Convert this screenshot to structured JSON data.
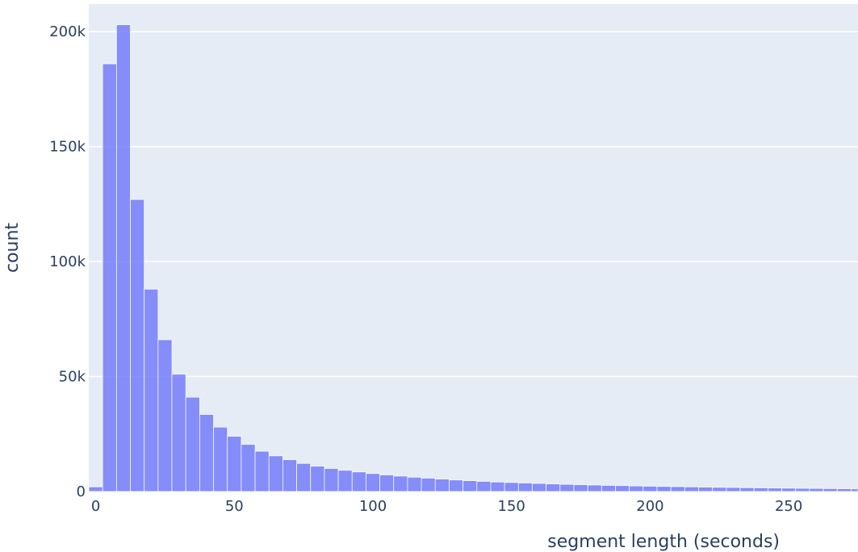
{
  "chart_data": {
    "type": "bar",
    "title": "",
    "xlabel": "segment length (seconds)",
    "ylabel": "count",
    "bin_width": 5,
    "x_start": -2.5,
    "xlim": [
      -2.5,
      275
    ],
    "ylim": [
      0,
      212000
    ],
    "grid": true,
    "legend": "none",
    "bar_color": "#636efa",
    "plot_background": "#e5ecf6",
    "x_ticks": [
      {
        "value": 0,
        "label": "0"
      },
      {
        "value": 50,
        "label": "50"
      },
      {
        "value": 100,
        "label": "100"
      },
      {
        "value": 150,
        "label": "150"
      },
      {
        "value": 200,
        "label": "200"
      },
      {
        "value": 250,
        "label": "250"
      }
    ],
    "y_ticks": [
      {
        "value": 0,
        "label": "0"
      },
      {
        "value": 50000,
        "label": "50k"
      },
      {
        "value": 100000,
        "label": "100k"
      },
      {
        "value": 150000,
        "label": "150k"
      },
      {
        "value": 200000,
        "label": "200k"
      }
    ],
    "values": [
      2000,
      186000,
      203000,
      127000,
      88000,
      66000,
      51000,
      41000,
      33500,
      28000,
      24000,
      20500,
      17500,
      15500,
      13800,
      12200,
      11000,
      10000,
      9200,
      8500,
      7800,
      7200,
      6700,
      6200,
      5800,
      5400,
      5000,
      4700,
      4400,
      4100,
      3900,
      3700,
      3500,
      3300,
      3100,
      2950,
      2800,
      2650,
      2550,
      2400,
      2300,
      2200,
      2100,
      2000,
      1900,
      1800,
      1750,
      1650,
      1580,
      1500,
      1450,
      1380,
      1320,
      1260,
      1200,
      1150
    ]
  }
}
